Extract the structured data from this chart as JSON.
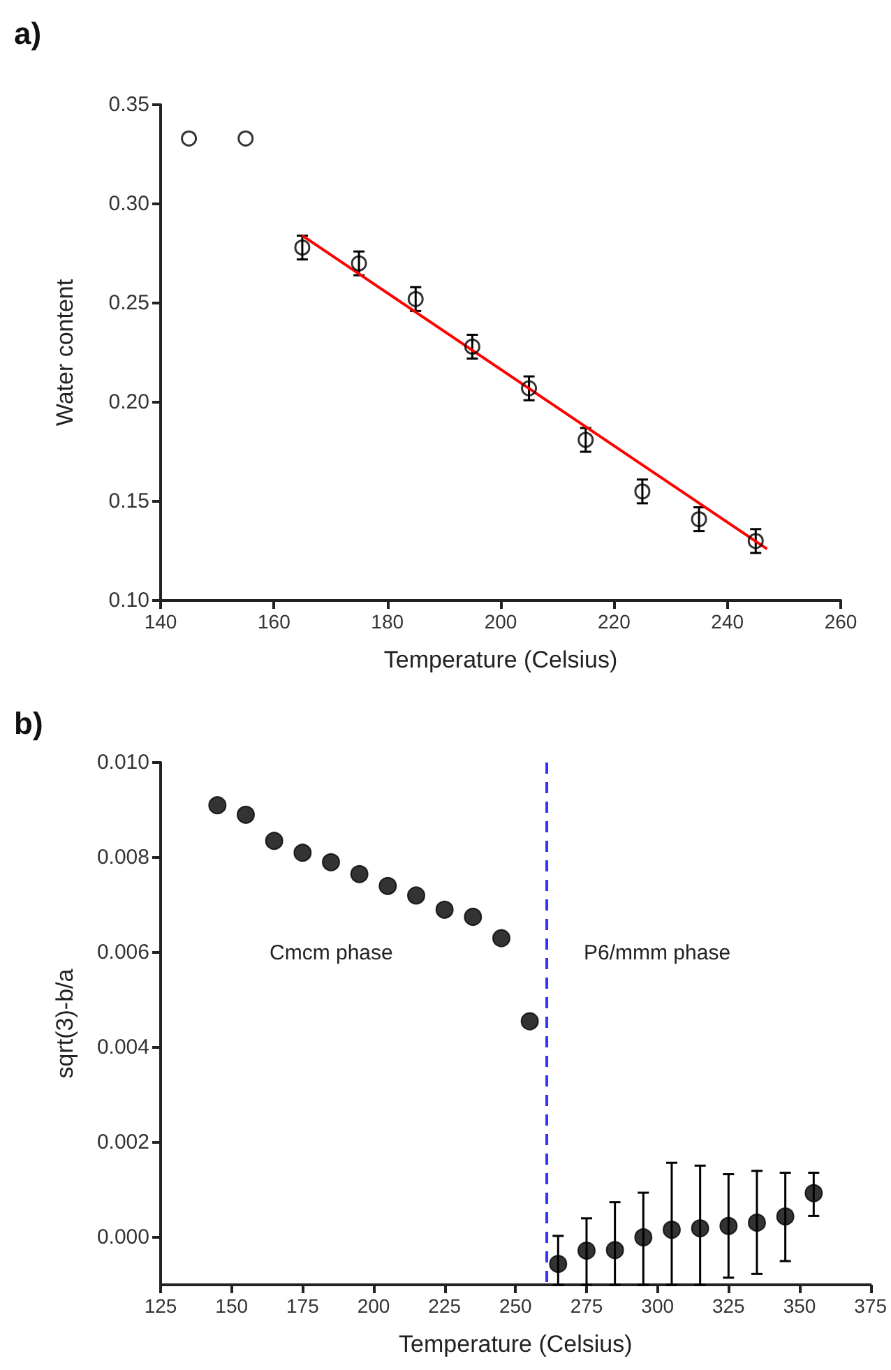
{
  "chart_data": [
    {
      "type": "scatter",
      "title": "a)",
      "xlabel": "Temperature (Celsius)",
      "ylabel": "Water content",
      "marker": "circle",
      "grid": false,
      "xlim": [
        140,
        260
      ],
      "xticks": [
        140,
        160,
        180,
        200,
        220,
        240,
        260
      ],
      "ylim": [
        0.1,
        0.35
      ],
      "yticks": [
        {
          "value": 0.1,
          "label": "0.10"
        },
        {
          "value": 0.15,
          "label": "0.15"
        },
        {
          "value": 0.2,
          "label": "0.20"
        },
        {
          "value": 0.25,
          "label": "0.25"
        },
        {
          "value": 0.3,
          "label": "0.30"
        },
        {
          "value": 0.35,
          "label": "0.35"
        }
      ],
      "series": [
        {
          "color": "#000000",
          "x": [
            145,
            155,
            165,
            175,
            185,
            195,
            205,
            215,
            225,
            235,
            245
          ],
          "values": [
            0.333,
            0.333,
            0.278,
            0.27,
            0.252,
            0.228,
            0.207,
            0.181,
            0.155,
            0.141,
            0.13
          ],
          "errors": [
            null,
            null,
            0.006,
            0.006,
            0.006,
            0.006,
            0.006,
            0.006,
            0.006,
            0.006,
            0.006
          ]
        },
        {
          "type": "line",
          "color": "#ff0000",
          "marker": "none",
          "x": [
            165,
            247
          ],
          "values": [
            0.284,
            0.126
          ]
        }
      ]
    },
    {
      "type": "scatter",
      "title": "b)",
      "xlabel": "Temperature (Celsius)",
      "ylabel": "sqrt(3)-b/a",
      "marker": "circle",
      "grid": false,
      "xlim": [
        125,
        375
      ],
      "xticks": [
        125,
        150,
        175,
        200,
        225,
        250,
        275,
        300,
        325,
        350,
        375
      ],
      "ylim": [
        -0.001,
        0.01
      ],
      "yticks": [
        {
          "value": 0,
          "label": "0.000"
        },
        {
          "value": 0.002,
          "label": "0.002"
        },
        {
          "value": 0.004,
          "label": "0.004"
        },
        {
          "value": 0.006,
          "label": "0.006"
        },
        {
          "value": 0.008,
          "label": "0.008"
        },
        {
          "value": 0.01,
          "label": "0.010"
        }
      ],
      "ref_lines": [
        {
          "axis": "x",
          "value": 261,
          "color": "#3333ff",
          "line_style": "dashed"
        }
      ],
      "annotations": [
        "Cmcm phase",
        "P6/mmm phase"
      ],
      "series": [
        {
          "color": "#000000",
          "x": [
            145,
            155,
            165,
            175,
            185,
            195,
            205,
            215,
            225,
            235,
            245,
            255,
            265,
            275,
            285,
            295,
            305,
            315,
            325,
            335,
            345,
            355
          ],
          "values": [
            0.0091,
            0.0089,
            0.00835,
            0.0081,
            0.0079,
            0.00765,
            0.0074,
            0.0072,
            0.0069,
            0.00675,
            0.0063,
            0.00455,
            -0.00056,
            -0.00028,
            -0.00027,
            0.0,
            0.00016,
            0.00019,
            0.00024,
            0.00031,
            0.00044,
            0.00093
          ],
          "errors": [
            null,
            null,
            null,
            null,
            null,
            null,
            null,
            null,
            null,
            null,
            null,
            null,
            [
              -0.001,
              3e-05
            ],
            [
              -0.001,
              0.0004
            ],
            [
              -0.001,
              0.00074
            ],
            [
              -0.001,
              0.00094
            ],
            [
              -0.001,
              0.00157
            ],
            [
              -0.001,
              0.00151
            ],
            [
              -0.00085,
              0.00133
            ],
            [
              -0.00077,
              0.0014
            ],
            [
              -0.0005,
              0.00136
            ],
            [
              0.00045,
              0.00136
            ]
          ]
        }
      ]
    }
  ]
}
